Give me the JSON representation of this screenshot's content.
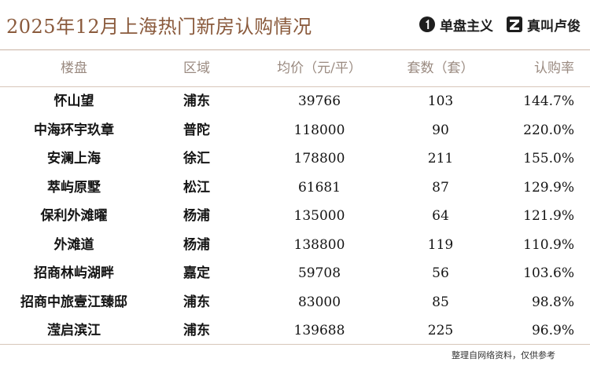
{
  "title": "2025年12月上海热门新房认购情况",
  "brands": [
    {
      "name": "单盘主义",
      "icon": "single-disk-logo-icon"
    },
    {
      "name": "真叫卢俊",
      "icon": "zhenjiao-logo-icon"
    }
  ],
  "colors": {
    "title": "#8a5a3c",
    "header_text": "#9a8a80",
    "rule": "#d7c6b9"
  },
  "footer": "整理自网络资料，仅供参考",
  "chart_data": {
    "type": "table",
    "columns": [
      "楼盘",
      "区域",
      "均价（元/平）",
      "套数（套）",
      "认购率"
    ],
    "rows": [
      [
        "怀山望",
        "浦东",
        "39766",
        "103",
        "144.7%"
      ],
      [
        "中海环宇玖章",
        "普陀",
        "118000",
        "90",
        "220.0%"
      ],
      [
        "安澜上海",
        "徐汇",
        "178800",
        "211",
        "155.0%"
      ],
      [
        "萃屿原墅",
        "松江",
        "61681",
        "87",
        "129.9%"
      ],
      [
        "保利外滩曜",
        "杨浦",
        "135000",
        "64",
        "121.9%"
      ],
      [
        "外滩道",
        "杨浦",
        "138800",
        "119",
        "110.9%"
      ],
      [
        "招商林屿湖畔",
        "嘉定",
        "59708",
        "56",
        "103.6%"
      ],
      [
        "招商中旅壹江臻邸",
        "浦东",
        "83000",
        "85",
        "98.8%"
      ],
      [
        "滢启滨江",
        "浦东",
        "139688",
        "225",
        "96.9%"
      ]
    ]
  }
}
